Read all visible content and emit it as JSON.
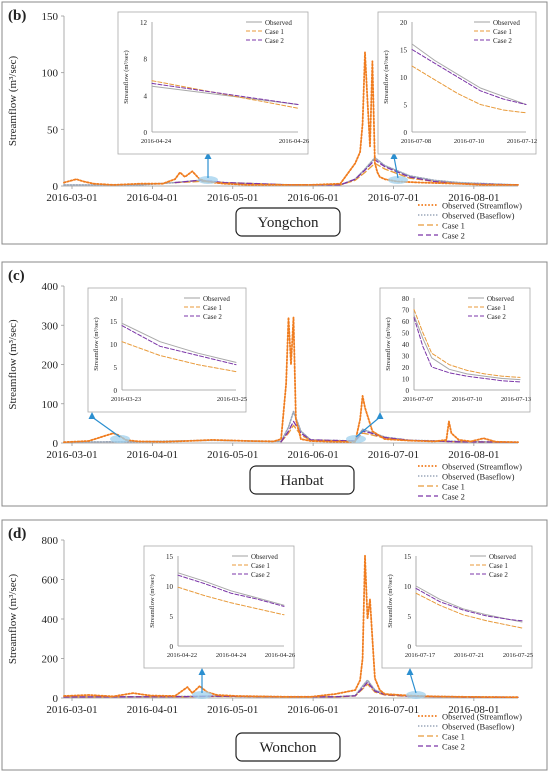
{
  "colors": {
    "observed_streamflow": "#f07c1e",
    "observed_baseflow": "#9aa6b8",
    "case1": "#e89a3a",
    "case2": "#7b35a8",
    "observed_inset": "#a8a8a8",
    "arrow": "#2b8fd0",
    "highlight": "#9fd0ee"
  },
  "legend_labels": {
    "main": [
      "Observed (Streamflow)",
      "Observed (Baseflow)",
      "Case 1",
      "Case 2"
    ],
    "inset": [
      "Observed",
      "Case 1",
      "Case 2"
    ]
  },
  "chart_data": [
    {
      "type": "line",
      "panel_label": "(b)",
      "station": "Yongchon",
      "ylabel": "Streamflow (m³/sec)",
      "xlabel": "",
      "x_ticks": [
        "2016-03-01",
        "2016-04-01",
        "2016-05-01",
        "2016-06-01",
        "2016-07-01",
        "2016-08-01"
      ],
      "y_ticks": [
        0,
        50,
        100,
        150
      ],
      "ylim": [
        0,
        150
      ],
      "x_range_days": [
        0,
        184
      ],
      "legend_position": "bottom-right",
      "series": [
        {
          "name": "Observed (Streamflow)",
          "x": [
            0,
            5,
            8,
            12,
            20,
            31,
            40,
            45,
            47,
            49,
            52,
            55,
            58,
            61,
            65,
            75,
            92,
            100,
            112,
            118,
            120,
            121,
            122,
            123,
            124,
            125,
            126,
            127,
            128,
            130,
            135,
            145,
            160,
            170,
            184
          ],
          "y": [
            3,
            6,
            4,
            2,
            1,
            2,
            2,
            6,
            12,
            8,
            13,
            6,
            4,
            3,
            2,
            1,
            1,
            1,
            2,
            20,
            30,
            55,
            118,
            75,
            35,
            110,
            20,
            12,
            8,
            6,
            4,
            3,
            2,
            1,
            1
          ]
        },
        {
          "name": "Observed (Baseflow)",
          "x": [
            0,
            31,
            45,
            55,
            65,
            92,
            112,
            118,
            122,
            126,
            130,
            140,
            150,
            160,
            184
          ],
          "y": [
            1,
            1,
            3,
            5,
            3,
            1,
            1,
            6,
            15,
            25,
            18,
            9,
            5,
            3,
            1
          ]
        },
        {
          "name": "Case 1",
          "x": [
            45,
            55,
            65,
            92,
            112,
            118,
            122,
            126,
            130,
            140,
            150,
            160,
            184
          ],
          "y": [
            3,
            4,
            3,
            1,
            1,
            5,
            12,
            20,
            15,
            7,
            4,
            2,
            1
          ]
        },
        {
          "name": "Case 2",
          "x": [
            45,
            55,
            65,
            92,
            112,
            118,
            122,
            126,
            130,
            140,
            150,
            160,
            184
          ],
          "y": [
            3,
            5,
            3,
            1,
            1,
            6,
            14,
            23,
            17,
            8,
            4,
            2,
            1
          ]
        }
      ],
      "insets": [
        {
          "x_ticks": [
            "2016-04-24",
            "2016-04-26"
          ],
          "y_ticks": [
            0,
            4,
            8,
            12
          ],
          "ylim": [
            0,
            12
          ],
          "ylabel": "Streamflow (m³/sec)",
          "x_range": [
            0,
            3
          ],
          "series": [
            {
              "name": "Observed",
              "x": [
                0,
                3
              ],
              "y": [
                5.0,
                3.0
              ]
            },
            {
              "name": "Case 1",
              "x": [
                0,
                3
              ],
              "y": [
                5.6,
                2.6
              ]
            },
            {
              "name": "Case 2",
              "x": [
                0,
                3
              ],
              "y": [
                5.3,
                3.0
              ]
            }
          ]
        },
        {
          "x_ticks": [
            "2016-07-08",
            "2016-07-10",
            "2016-07-12"
          ],
          "y_ticks": [
            0,
            5,
            10,
            15,
            20
          ],
          "ylim": [
            0,
            20
          ],
          "ylabel": "Streamflow (m³/sec)",
          "x_range": [
            0,
            5
          ],
          "series": [
            {
              "name": "Observed",
              "x": [
                0,
                1,
                2,
                3,
                4,
                5
              ],
              "y": [
                16,
                13,
                10.5,
                8,
                6.5,
                5
              ]
            },
            {
              "name": "Case 1",
              "x": [
                0,
                1,
                2,
                3,
                4,
                5
              ],
              "y": [
                12,
                9.5,
                7,
                5,
                4,
                3.5
              ]
            },
            {
              "name": "Case 2",
              "x": [
                0,
                1,
                2,
                3,
                4,
                5
              ],
              "y": [
                15,
                12.5,
                10,
                7.5,
                6,
                5
              ]
            }
          ]
        }
      ]
    },
    {
      "type": "line",
      "panel_label": "(c)",
      "station": "Hanbat",
      "ylabel": "Streamflow (m³/sec)",
      "xlabel": "",
      "x_ticks": [
        "2016-03-01",
        "2016-04-01",
        "2016-05-01",
        "2016-06-01",
        "2016-07-01",
        "2016-08-01"
      ],
      "y_ticks": [
        0,
        100,
        200,
        300,
        400
      ],
      "ylim": [
        0,
        400
      ],
      "x_range_days": [
        0,
        184
      ],
      "legend_position": "bottom-right",
      "series": [
        {
          "name": "Observed (Streamflow)",
          "x": [
            0,
            10,
            15,
            20,
            22,
            25,
            30,
            40,
            50,
            60,
            75,
            85,
            88,
            90,
            91,
            92,
            93,
            94,
            96,
            100,
            110,
            118,
            120,
            121,
            122,
            125,
            130,
            140,
            150,
            155,
            156,
            157,
            160,
            165,
            170,
            175,
            184
          ],
          "y": [
            2,
            5,
            15,
            25,
            20,
            8,
            4,
            3,
            5,
            8,
            5,
            4,
            10,
            150,
            320,
            200,
            320,
            60,
            10,
            5,
            3,
            3,
            60,
            120,
            90,
            30,
            10,
            6,
            4,
            8,
            55,
            25,
            8,
            4,
            12,
            3,
            2
          ]
        },
        {
          "name": "Observed (Baseflow)",
          "x": [
            0,
            20,
            30,
            45,
            60,
            75,
            88,
            91,
            93,
            96,
            100,
            118,
            121,
            124,
            130,
            140,
            160,
            184
          ],
          "y": [
            2,
            3,
            3,
            5,
            7,
            5,
            4,
            40,
            80,
            30,
            8,
            5,
            35,
            28,
            15,
            7,
            4,
            2
          ]
        },
        {
          "name": "Case 1",
          "x": [
            88,
            91,
            93,
            96,
            100,
            118,
            121,
            124,
            130,
            140,
            160,
            184
          ],
          "y": [
            3,
            25,
            45,
            20,
            7,
            5,
            25,
            22,
            12,
            6,
            3,
            2
          ]
        },
        {
          "name": "Case 2",
          "x": [
            88,
            91,
            93,
            96,
            100,
            118,
            121,
            124,
            130,
            140,
            160,
            184
          ],
          "y": [
            3,
            30,
            55,
            25,
            8,
            5,
            30,
            26,
            14,
            7,
            3,
            2
          ]
        }
      ],
      "insets": [
        {
          "x_ticks": [
            "2016-03-23",
            "2016-03-25"
          ],
          "y_ticks": [
            0,
            5,
            10,
            15,
            20
          ],
          "ylim": [
            0,
            20
          ],
          "ylabel": "Streamflow (m³/sec)",
          "x_range": [
            0,
            3
          ],
          "series": [
            {
              "name": "Observed",
              "x": [
                0,
                1,
                2,
                3
              ],
              "y": [
                14.5,
                10.5,
                8,
                6
              ]
            },
            {
              "name": "Case 1",
              "x": [
                0,
                1,
                2,
                3
              ],
              "y": [
                10.5,
                7.5,
                5.5,
                4
              ]
            },
            {
              "name": "Case 2",
              "x": [
                0,
                1,
                2,
                3
              ],
              "y": [
                14,
                9.5,
                7.5,
                5.5
              ]
            }
          ]
        },
        {
          "x_ticks": [
            "2016-07-07",
            "2016-07-10",
            "2016-07-13"
          ],
          "y_ticks": [
            0,
            10,
            20,
            30,
            40,
            50,
            60,
            70,
            80
          ],
          "ylim": [
            0,
            80
          ],
          "ylabel": "Streamflow (m³/sec)",
          "x_range": [
            0,
            6
          ],
          "series": [
            {
              "name": "Observed",
              "x": [
                0,
                0.5,
                1,
                2,
                3,
                4,
                5,
                6
              ],
              "y": [
                65,
                45,
                28,
                18,
                14,
                12,
                10,
                9
              ]
            },
            {
              "name": "Case 1",
              "x": [
                0,
                0.5,
                1,
                2,
                3,
                4,
                5,
                6
              ],
              "y": [
                70,
                50,
                32,
                22,
                17,
                14,
                12,
                11
              ]
            },
            {
              "name": "Case 2",
              "x": [
                0,
                0.5,
                1,
                2,
                3,
                4,
                5,
                6
              ],
              "y": [
                63,
                38,
                20,
                15,
                12,
                10,
                8,
                7
              ]
            }
          ]
        }
      ]
    },
    {
      "type": "line",
      "panel_label": "(d)",
      "station": "Wonchon",
      "ylabel": "Streamflow (m³/sec)",
      "xlabel": "",
      "x_ticks": [
        "2016-03-01",
        "2016-04-01",
        "2016-05-01",
        "2016-06-01",
        "2016-07-01",
        "2016-08-01"
      ],
      "y_ticks": [
        0,
        200,
        400,
        600,
        800
      ],
      "ylim": [
        0,
        800
      ],
      "x_range_days": [
        0,
        184
      ],
      "legend_position": "bottom-right",
      "series": [
        {
          "name": "Observed (Streamflow)",
          "x": [
            0,
            10,
            20,
            28,
            35,
            45,
            50,
            52,
            55,
            58,
            62,
            70,
            80,
            90,
            100,
            110,
            118,
            120,
            121,
            122,
            123,
            124,
            125,
            126,
            128,
            130,
            140,
            150,
            160,
            170,
            184
          ],
          "y": [
            10,
            15,
            8,
            25,
            12,
            10,
            55,
            25,
            60,
            30,
            15,
            10,
            8,
            6,
            6,
            20,
            40,
            90,
            200,
            720,
            400,
            500,
            300,
            100,
            40,
            20,
            12,
            8,
            6,
            5,
            4
          ]
        },
        {
          "name": "Observed (Baseflow)",
          "x": [
            0,
            30,
            50,
            60,
            90,
            110,
            118,
            121,
            123,
            126,
            130,
            140,
            160,
            184
          ],
          "y": [
            5,
            6,
            8,
            10,
            6,
            6,
            12,
            60,
            90,
            40,
            20,
            10,
            6,
            4
          ]
        },
        {
          "name": "Case 1",
          "x": [
            0,
            50,
            60,
            90,
            110,
            118,
            121,
            123,
            126,
            130,
            140,
            160,
            184
          ],
          "y": [
            5,
            6,
            8,
            5,
            5,
            10,
            45,
            70,
            30,
            15,
            8,
            5,
            3
          ]
        },
        {
          "name": "Case 2",
          "x": [
            0,
            50,
            60,
            90,
            110,
            118,
            121,
            123,
            126,
            130,
            140,
            160,
            184
          ],
          "y": [
            5,
            7,
            9,
            6,
            6,
            11,
            50,
            80,
            35,
            17,
            9,
            5,
            3
          ]
        }
      ],
      "insets": [
        {
          "x_ticks": [
            "2016-04-22",
            "2016-04-24",
            "2016-04-26"
          ],
          "y_ticks": [
            0,
            5,
            10,
            15
          ],
          "ylim": [
            0,
            15
          ],
          "ylabel": "Streamflow (m³/sec)",
          "x_range": [
            0,
            4
          ],
          "series": [
            {
              "name": "Observed",
              "x": [
                0,
                1,
                2,
                3,
                4
              ],
              "y": [
                12.2,
                10.8,
                9.2,
                8,
                6.8
              ]
            },
            {
              "name": "Case 1",
              "x": [
                0,
                1,
                2,
                3,
                4
              ],
              "y": [
                9.8,
                8.4,
                7.2,
                6.2,
                5.2
              ]
            },
            {
              "name": "Case 2",
              "x": [
                0,
                1,
                2,
                3,
                4
              ],
              "y": [
                11.8,
                10.4,
                8.8,
                7.8,
                6.6
              ]
            }
          ]
        },
        {
          "x_ticks": [
            "2016-07-17",
            "2016-07-21",
            "2016-07-25"
          ],
          "y_ticks": [
            0,
            5,
            10,
            15
          ],
          "ylim": [
            0,
            15
          ],
          "ylabel": "Streamflow (m³/sec)",
          "x_range": [
            0,
            9
          ],
          "series": [
            {
              "name": "Observed",
              "x": [
                0,
                2,
                4,
                6,
                8,
                9
              ],
              "y": [
                10,
                7.8,
                6.2,
                5.2,
                4.4,
                4
              ]
            },
            {
              "name": "Case 1",
              "x": [
                0,
                2,
                4,
                6,
                8,
                9
              ],
              "y": [
                8.8,
                6.8,
                5.2,
                4.2,
                3.4,
                3
              ]
            },
            {
              "name": "Case 2",
              "x": [
                0,
                2,
                4,
                6,
                8,
                9
              ],
              "y": [
                9.6,
                7.4,
                6,
                5,
                4.4,
                4.2
              ]
            }
          ]
        }
      ]
    }
  ]
}
